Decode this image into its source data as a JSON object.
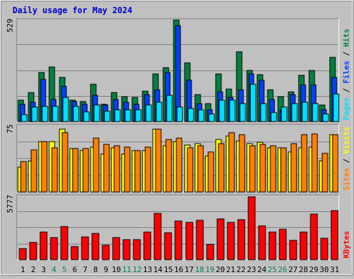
{
  "title": "Daily usage for May 2024",
  "colors": {
    "background": "#c0c0c0",
    "plot": "#c0c0c0",
    "hits": "#008040",
    "files": "#0040ff",
    "pages": "#00e0ff",
    "visits": "#ffff00",
    "sites": "#ff8000",
    "kbytes": "#ff0000",
    "weekend_label": "#00805c",
    "weekday_label": "#000000"
  },
  "chart_data": [
    {
      "type": "bar",
      "name": "pages-files-hits",
      "ymax_label": "529",
      "ylim": [
        0,
        529
      ],
      "categories": [
        "1",
        "2",
        "3",
        "4",
        "5",
        "6",
        "7",
        "8",
        "9",
        "10",
        "11",
        "12",
        "13",
        "14",
        "15",
        "16",
        "17",
        "18",
        "19",
        "20",
        "21",
        "22",
        "23",
        "24",
        "25",
        "26",
        "27",
        "28",
        "29",
        "30",
        "31"
      ],
      "side_labels": [
        "Pages",
        "Files",
        "Hits"
      ],
      "series": [
        {
          "name": "Hits",
          "values": [
            110,
            150,
            255,
            285,
            230,
            110,
            105,
            195,
            90,
            150,
            130,
            125,
            160,
            250,
            280,
            529,
            305,
            140,
            95,
            250,
            170,
            365,
            265,
            245,
            165,
            130,
            155,
            240,
            265,
            85,
            335
          ]
        },
        {
          "name": "Files",
          "values": [
            90,
            100,
            220,
            115,
            185,
            105,
            90,
            135,
            85,
            115,
            100,
            90,
            140,
            165,
            255,
            500,
            215,
            95,
            60,
            155,
            125,
            165,
            250,
            215,
            115,
            60,
            140,
            190,
            190,
            60,
            230
          ]
        },
        {
          "name": "Pages",
          "values": [
            35,
            75,
            80,
            80,
            125,
            80,
            50,
            85,
            55,
            60,
            60,
            60,
            85,
            100,
            135,
            75,
            70,
            60,
            40,
            110,
            110,
            95,
            195,
            95,
            45,
            75,
            95,
            100,
            95,
            40,
            145
          ]
        }
      ]
    },
    {
      "type": "bar",
      "name": "sites-visits",
      "ymax_label": "75",
      "ylim": [
        0,
        75
      ],
      "categories": [
        "1",
        "2",
        "3",
        "4",
        "5",
        "6",
        "7",
        "8",
        "9",
        "10",
        "11",
        "12",
        "13",
        "14",
        "15",
        "16",
        "17",
        "18",
        "19",
        "20",
        "21",
        "22",
        "23",
        "24",
        "25",
        "26",
        "27",
        "28",
        "29",
        "30",
        "31"
      ],
      "side_labels": [
        "Sites",
        "Visits"
      ],
      "series": [
        {
          "name": "Visits",
          "values": [
            28,
            35,
            57,
            57,
            71,
            49,
            47,
            51,
            43,
            50,
            43,
            47,
            47,
            71,
            52,
            57,
            53,
            55,
            41,
            59,
            63,
            58,
            55,
            56,
            50,
            50,
            45,
            50,
            51,
            35,
            65
          ]
        },
        {
          "name": "Sites",
          "values": [
            34,
            48,
            57,
            50,
            67,
            49,
            49,
            61,
            54,
            52,
            51,
            47,
            51,
            71,
            59,
            61,
            50,
            52,
            45,
            55,
            67,
            65,
            52,
            54,
            52,
            50,
            55,
            65,
            66,
            44,
            65
          ]
        }
      ]
    },
    {
      "type": "bar",
      "name": "kbytes",
      "ymax_label": "5777",
      "ylim": [
        0,
        5777
      ],
      "categories": [
        "1",
        "2",
        "3",
        "4",
        "5",
        "6",
        "7",
        "8",
        "9",
        "10",
        "11",
        "12",
        "13",
        "14",
        "15",
        "16",
        "17",
        "18",
        "19",
        "20",
        "21",
        "22",
        "23",
        "24",
        "25",
        "26",
        "27",
        "28",
        "29",
        "30",
        "31"
      ],
      "side_labels": [
        "KBytes"
      ],
      "series": [
        {
          "name": "KBytes",
          "values": [
            1030,
            1590,
            2490,
            2020,
            3010,
            1210,
            2050,
            2370,
            1340,
            2020,
            1800,
            1800,
            2520,
            4230,
            2440,
            3530,
            3390,
            3560,
            1390,
            3710,
            3410,
            3650,
            5720,
            3060,
            2500,
            2760,
            1740,
            2500,
            4140,
            1940,
            4440
          ]
        }
      ]
    }
  ],
  "weekend_days": [
    "4",
    "5",
    "11",
    "12",
    "18",
    "19",
    "25",
    "26"
  ]
}
